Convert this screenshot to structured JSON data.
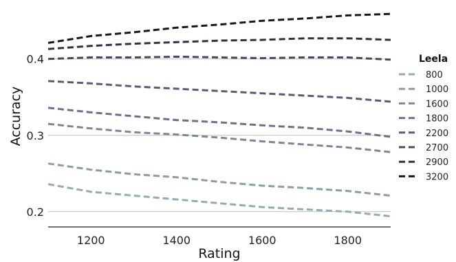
{
  "chart_data": {
    "type": "line",
    "title": "",
    "xlabel": "Rating",
    "ylabel": "Accuracy",
    "xlim": [
      1100,
      1900
    ],
    "ylim": [
      0.18,
      0.47
    ],
    "xticks": [
      1200,
      1400,
      1600,
      1800
    ],
    "yticks": [
      0.2,
      0.3,
      0.4
    ],
    "ytick_labels": [
      "0.2",
      "0.3",
      "0.4"
    ],
    "grid": "horizontal",
    "line_style": "dashed",
    "legend": {
      "title": "Leela",
      "placement": "right"
    },
    "x": [
      1100,
      1200,
      1300,
      1400,
      1500,
      1600,
      1700,
      1800,
      1900
    ],
    "series": [
      {
        "name": "800",
        "color": "#93abb1",
        "values": [
          0.236,
          0.226,
          0.221,
          0.216,
          0.211,
          0.206,
          0.203,
          0.2,
          0.194
        ]
      },
      {
        "name": "1000",
        "color": "#8a9ca6",
        "values": [
          0.263,
          0.255,
          0.249,
          0.245,
          0.239,
          0.234,
          0.231,
          0.227,
          0.221
        ]
      },
      {
        "name": "1600",
        "color": "#7a8797",
        "values": [
          0.315,
          0.309,
          0.304,
          0.301,
          0.297,
          0.292,
          0.288,
          0.284,
          0.278
        ]
      },
      {
        "name": "1800",
        "color": "#6c708a",
        "values": [
          0.336,
          0.33,
          0.325,
          0.32,
          0.317,
          0.313,
          0.31,
          0.305,
          0.298
        ]
      },
      {
        "name": "2200",
        "color": "#5a5a76",
        "values": [
          0.371,
          0.368,
          0.364,
          0.361,
          0.358,
          0.355,
          0.352,
          0.349,
          0.344
        ]
      },
      {
        "name": "2700",
        "color": "#464860",
        "values": [
          0.4,
          0.402,
          0.402,
          0.403,
          0.402,
          0.401,
          0.402,
          0.402,
          0.399
        ]
      },
      {
        "name": "2900",
        "color": "#2f3042",
        "values": [
          0.413,
          0.417,
          0.42,
          0.422,
          0.424,
          0.425,
          0.427,
          0.427,
          0.425
        ]
      },
      {
        "name": "3200",
        "color": "#15161f",
        "values": [
          0.421,
          0.43,
          0.435,
          0.441,
          0.445,
          0.45,
          0.453,
          0.457,
          0.459
        ]
      }
    ]
  }
}
